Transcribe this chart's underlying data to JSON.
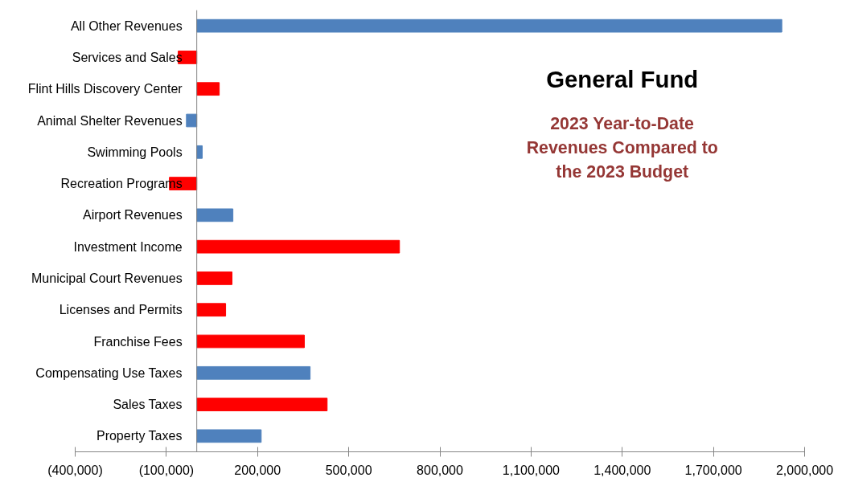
{
  "chart_data": {
    "type": "bar",
    "orientation": "horizontal",
    "title": "General Fund",
    "subtitle": "2023 Year-to-Date Revenues Compared to the 2023 Budget",
    "categories": [
      "All Other Revenues",
      "Services and Sales",
      "Flint Hills Discovery Center",
      "Animal Shelter Revenues",
      "Swimming Pools",
      "Recreation Programs",
      "Airport Revenues",
      "Investment Income",
      "Municipal Court Revenues",
      "Licenses and Permits",
      "Franchise Fees",
      "Compensating Use Taxes",
      "Sales Taxes",
      "Property Taxes"
    ],
    "values": [
      1925000,
      -61000,
      74000,
      -34000,
      18000,
      -90000,
      119000,
      667000,
      116000,
      95000,
      354000,
      373000,
      429000,
      212000
    ],
    "colors": [
      "#4f81bd",
      "#ff0000",
      "#ff0000",
      "#4f81bd",
      "#4f81bd",
      "#ff0000",
      "#4f81bd",
      "#ff0000",
      "#ff0000",
      "#ff0000",
      "#ff0000",
      "#4f81bd",
      "#ff0000",
      "#4f81bd"
    ],
    "xlim": [
      -400000,
      2000000
    ],
    "xticks": [
      {
        "value": -400000,
        "label": "(400,000)"
      },
      {
        "value": -100000,
        "label": "(100,000)"
      },
      {
        "value": 200000,
        "label": "200,000"
      },
      {
        "value": 500000,
        "label": "500,000"
      },
      {
        "value": 800000,
        "label": "800,000"
      },
      {
        "value": 1100000,
        "label": "1,100,000"
      },
      {
        "value": 1400000,
        "label": "1,400,000"
      },
      {
        "value": 1700000,
        "label": "1,700,000"
      },
      {
        "value": 2000000,
        "label": "2,000,000"
      }
    ],
    "grid": false
  }
}
